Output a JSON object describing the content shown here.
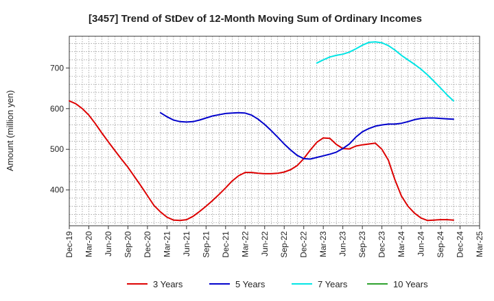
{
  "chart_data": {
    "type": "line",
    "title": "[3457]  Trend of StDev of 12-Month Moving Sum of Ordinary Incomes",
    "xlabel": "",
    "ylabel": "Amount (million yen)",
    "ylim": [
      312,
      778
    ],
    "yticks": [
      400,
      500,
      600,
      700
    ],
    "x_tick_labels": [
      "Dec-19",
      "Mar-20",
      "Jun-20",
      "Sep-20",
      "Dec-20",
      "Mar-21",
      "Jun-21",
      "Sep-21",
      "Dec-21",
      "Mar-22",
      "Jun-22",
      "Sep-22",
      "Dec-22",
      "Mar-23",
      "Jun-23",
      "Sep-23",
      "Dec-23",
      "Mar-24",
      "Jun-24",
      "Sep-24",
      "Dec-24",
      "Mar-25"
    ],
    "x_unit": "month index from Dec-19",
    "xlim": [
      0,
      63
    ],
    "series": [
      {
        "name": "3 Years",
        "color": "#dd0000",
        "points": [
          [
            0,
            619
          ],
          [
            1,
            612
          ],
          [
            2,
            600
          ],
          [
            3,
            584
          ],
          [
            4,
            563
          ],
          [
            5,
            540
          ],
          [
            6,
            518
          ],
          [
            7,
            497
          ],
          [
            8,
            476
          ],
          [
            9,
            456
          ],
          [
            10,
            433
          ],
          [
            11,
            410
          ],
          [
            12,
            386
          ],
          [
            13,
            362
          ],
          [
            14,
            346
          ],
          [
            15,
            333
          ],
          [
            16,
            326
          ],
          [
            17,
            325
          ],
          [
            18,
            327
          ],
          [
            19,
            335
          ],
          [
            20,
            347
          ],
          [
            21,
            360
          ],
          [
            22,
            374
          ],
          [
            23,
            389
          ],
          [
            24,
            405
          ],
          [
            25,
            422
          ],
          [
            26,
            435
          ],
          [
            27,
            443
          ],
          [
            28,
            443
          ],
          [
            29,
            441
          ],
          [
            30,
            440
          ],
          [
            31,
            440
          ],
          [
            32,
            441
          ],
          [
            33,
            444
          ],
          [
            34,
            450
          ],
          [
            35,
            460
          ],
          [
            36,
            477
          ],
          [
            37,
            498
          ],
          [
            38,
            517
          ],
          [
            39,
            528
          ],
          [
            40,
            527
          ],
          [
            41,
            512
          ],
          [
            42,
            502
          ],
          [
            43,
            501
          ],
          [
            44,
            508
          ],
          [
            45,
            511
          ],
          [
            46,
            513
          ],
          [
            47,
            515
          ],
          [
            48,
            500
          ],
          [
            49,
            473
          ],
          [
            50,
            425
          ],
          [
            51,
            385
          ],
          [
            52,
            360
          ],
          [
            53,
            343
          ],
          [
            54,
            331
          ],
          [
            55,
            325
          ],
          [
            56,
            326
          ],
          [
            57,
            327
          ],
          [
            58,
            327
          ],
          [
            59,
            326
          ]
        ]
      },
      {
        "name": "5 Years",
        "color": "#0000cc",
        "points": [
          [
            14,
            590
          ],
          [
            15,
            580
          ],
          [
            16,
            572
          ],
          [
            17,
            568
          ],
          [
            18,
            567
          ],
          [
            19,
            568
          ],
          [
            20,
            572
          ],
          [
            21,
            577
          ],
          [
            22,
            582
          ],
          [
            23,
            585
          ],
          [
            24,
            588
          ],
          [
            25,
            589
          ],
          [
            26,
            590
          ],
          [
            27,
            589
          ],
          [
            28,
            584
          ],
          [
            29,
            574
          ],
          [
            30,
            561
          ],
          [
            31,
            546
          ],
          [
            32,
            530
          ],
          [
            33,
            513
          ],
          [
            34,
            498
          ],
          [
            35,
            485
          ],
          [
            36,
            477
          ],
          [
            37,
            476
          ],
          [
            38,
            480
          ],
          [
            39,
            484
          ],
          [
            40,
            488
          ],
          [
            41,
            493
          ],
          [
            42,
            502
          ],
          [
            43,
            513
          ],
          [
            44,
            530
          ],
          [
            45,
            543
          ],
          [
            46,
            551
          ],
          [
            47,
            557
          ],
          [
            48,
            560
          ],
          [
            49,
            562
          ],
          [
            50,
            562
          ],
          [
            51,
            564
          ],
          [
            52,
            568
          ],
          [
            53,
            573
          ],
          [
            54,
            576
          ],
          [
            55,
            577
          ],
          [
            56,
            577
          ],
          [
            57,
            576
          ],
          [
            58,
            575
          ],
          [
            59,
            574
          ]
        ]
      },
      {
        "name": "7 Years",
        "color": "#00e5e5",
        "points": [
          [
            38,
            712
          ],
          [
            39,
            720
          ],
          [
            40,
            727
          ],
          [
            41,
            731
          ],
          [
            42,
            734
          ],
          [
            43,
            739
          ],
          [
            44,
            747
          ],
          [
            45,
            756
          ],
          [
            46,
            763
          ],
          [
            47,
            764
          ],
          [
            48,
            762
          ],
          [
            49,
            755
          ],
          [
            50,
            744
          ],
          [
            51,
            731
          ],
          [
            52,
            720
          ],
          [
            53,
            709
          ],
          [
            54,
            697
          ],
          [
            55,
            683
          ],
          [
            56,
            667
          ],
          [
            57,
            651
          ],
          [
            58,
            634
          ],
          [
            59,
            619
          ]
        ]
      },
      {
        "name": "10 Years",
        "color": "#2ca02c",
        "points": []
      }
    ],
    "legend_position": "bottom-center"
  }
}
